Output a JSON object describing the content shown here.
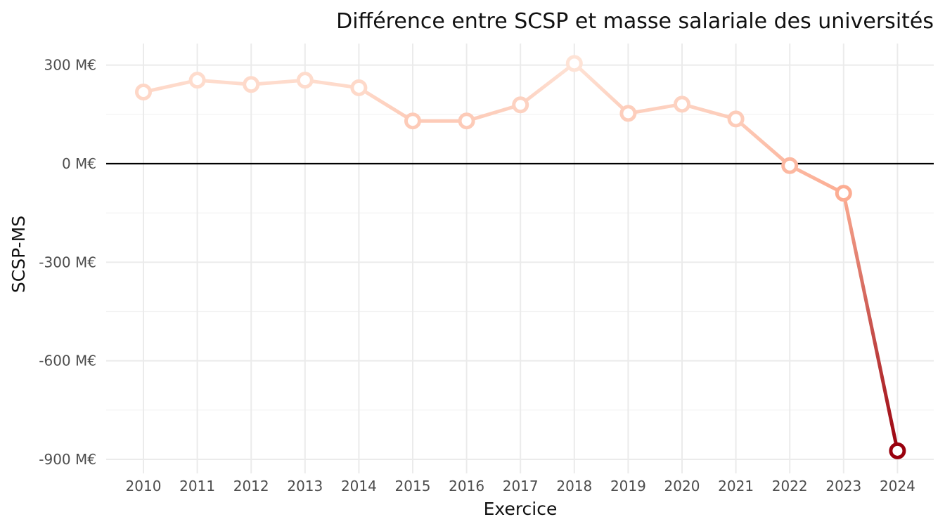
{
  "chart_data": {
    "type": "line",
    "title": "Différence entre SCSP et masse salariale des universités",
    "xlabel": "Exercice",
    "ylabel": "SCSP-MS",
    "categories": [
      "2010",
      "2011",
      "2012",
      "2013",
      "2014",
      "2015",
      "2016",
      "2017",
      "2018",
      "2019",
      "2020",
      "2021",
      "2022",
      "2023",
      "2024"
    ],
    "series": [
      {
        "values": [
          218,
          254,
          241,
          254,
          231,
          130,
          130,
          179,
          305,
          153,
          181,
          136,
          -6,
          -90,
          -874
        ]
      }
    ],
    "ylim": [
      -925,
      375
    ],
    "yticks": [
      300,
      0,
      -300,
      -600,
      -900
    ],
    "ytick_labels": [
      "300 M€",
      "0 M€",
      "-300 M€",
      "-600 M€",
      "-900 M€"
    ],
    "reference_line": 0,
    "grid": true,
    "legend": "none",
    "color_scale": {
      "low": "#99000d",
      "mid": "#fb906f",
      "high": "#fee3d6"
    }
  }
}
